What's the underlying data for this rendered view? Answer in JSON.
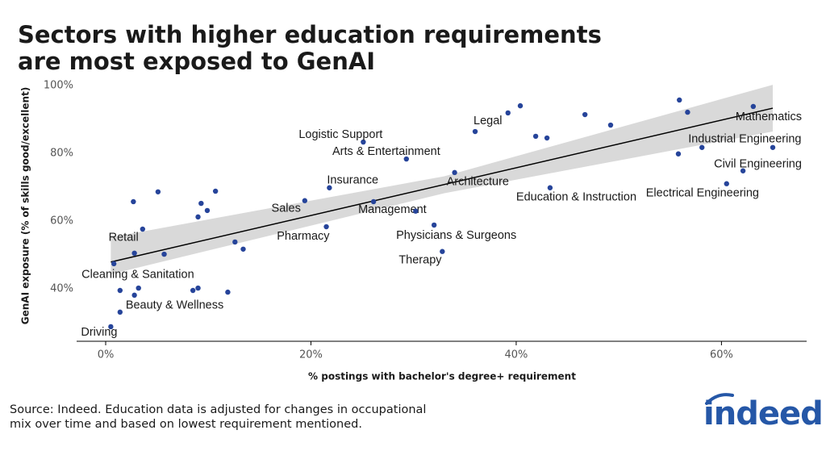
{
  "chart_data": {
    "type": "scatter",
    "title": [
      "Sectors with higher education requirements",
      "are most exposed to GenAI"
    ],
    "xlabel": "% postings with bachelor's degree+ requirement",
    "ylabel": "GenAI exposure (% of skills good/excellent)",
    "source": [
      "Source: Indeed. Education data is adjusted for changes in occupational",
      "mix over time and based on lowest requirement mentioned."
    ],
    "logo": "indeed",
    "color": "#26449a",
    "xlim": [
      -2.83,
      68.3
    ],
    "ylim": [
      24.5,
      102.6
    ],
    "xticks": [
      {
        "value": 0,
        "label": "0%"
      },
      {
        "value": 20,
        "label": "20%"
      },
      {
        "value": 40,
        "label": "40%"
      },
      {
        "value": 60,
        "label": "60%"
      }
    ],
    "yticks": [
      {
        "value": 40,
        "label": "40%"
      },
      {
        "value": 60,
        "label": "60%"
      },
      {
        "value": 80,
        "label": "80%"
      },
      {
        "value": 100,
        "label": "100%"
      }
    ],
    "grid": false,
    "x": [
      0.5,
      1.4,
      0.8,
      2.8,
      3.6,
      5.7,
      2.7,
      5.1,
      1.4,
      3.2,
      2.8,
      8.5,
      9.0,
      11.9,
      9.0,
      9.3,
      9.9,
      10.7,
      12.6,
      13.4,
      19.4,
      21.5,
      21.8,
      25.1,
      26.1,
      29.3,
      30.2,
      32.0,
      32.8,
      34.0,
      36.0,
      39.2,
      40.4,
      41.9,
      43.0,
      43.3,
      46.7,
      49.2,
      55.9,
      56.7,
      55.8,
      58.1,
      60.5,
      62.1,
      63.1,
      65.0
    ],
    "values": [
      28.8,
      33.1,
      47.4,
      50.5,
      57.6,
      50.2,
      65.7,
      68.6,
      39.5,
      40.2,
      38.1,
      39.5,
      40.2,
      39.0,
      61.2,
      65.2,
      63.1,
      68.8,
      53.8,
      51.7,
      66.0,
      58.3,
      69.8,
      83.3,
      65.7,
      78.3,
      62.9,
      58.8,
      51.0,
      74.3,
      86.4,
      91.9,
      94.0,
      85.0,
      84.5,
      69.8,
      91.4,
      88.3,
      95.7,
      92.1,
      79.8,
      81.7,
      71.0,
      74.8,
      93.8,
      81.7
    ],
    "labels": [
      "Driving",
      "Beauty & Wellness",
      "Cleaning & Sanitation",
      "Retail",
      null,
      null,
      null,
      null,
      null,
      null,
      null,
      null,
      null,
      null,
      null,
      null,
      null,
      null,
      null,
      null,
      "Sales",
      "Pharmacy",
      "Insurance",
      "Logistic Support",
      "Management",
      "Arts & Entertainment",
      null,
      "Physicians & Surgeons",
      "Therapy",
      "Architecture",
      "Legal",
      null,
      null,
      null,
      null,
      "Education & Instruction",
      null,
      null,
      null,
      null,
      null,
      "Industrial Engineering",
      "Electrical Engineering",
      "Civil Engineering",
      "Mathematics",
      null
    ],
    "trend": {
      "color": "#000000",
      "x": [
        0.5,
        65.0
      ],
      "y": [
        47.9,
        93.3
      ]
    },
    "band": {
      "color": "#d9d9d9",
      "x": [
        0.5,
        33.0,
        65.0
      ],
      "lower": [
        44.3,
        68.2,
        86.4
      ],
      "upper": [
        55.2,
        73.2,
        100.2
      ]
    }
  }
}
